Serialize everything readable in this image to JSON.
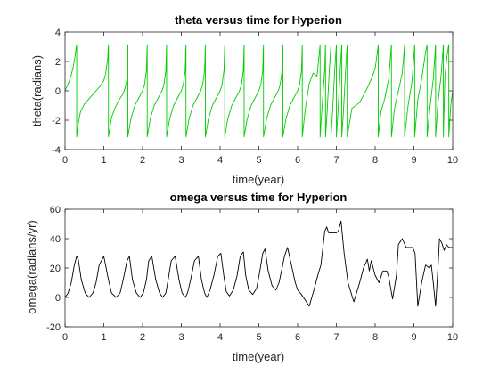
{
  "chart_data": [
    {
      "type": "line",
      "title": "theta versus time for Hyperion",
      "xlabel": "time(year)",
      "ylabel": "theta(radians)",
      "xlim": [
        0,
        10
      ],
      "ylim": [
        -4,
        4
      ],
      "xticks": [
        0,
        1,
        2,
        3,
        4,
        5,
        6,
        7,
        8,
        9,
        10
      ],
      "yticks": [
        -4,
        -2,
        0,
        2,
        4
      ],
      "grid": false,
      "series": [
        {
          "color": "#00cc00",
          "x": [
            0,
            0.05,
            0.1,
            0.15,
            0.2,
            0.25,
            0.28,
            0.3,
            0.3,
            0.33,
            0.4,
            0.5,
            0.6,
            0.7,
            0.8,
            0.9,
            1.0,
            1.05,
            1.1,
            1.12,
            1.12,
            1.2,
            1.3,
            1.4,
            1.5,
            1.55,
            1.6,
            1.62,
            1.62,
            1.7,
            1.8,
            1.9,
            2.0,
            2.05,
            2.1,
            2.12,
            2.12,
            2.2,
            2.3,
            2.4,
            2.5,
            2.55,
            2.6,
            2.62,
            2.62,
            2.7,
            2.8,
            2.9,
            3.0,
            3.05,
            3.1,
            3.12,
            3.12,
            3.2,
            3.3,
            3.4,
            3.5,
            3.55,
            3.6,
            3.62,
            3.62,
            3.7,
            3.8,
            3.9,
            4.0,
            4.05,
            4.1,
            4.12,
            4.12,
            4.2,
            4.3,
            4.4,
            4.5,
            4.55,
            4.6,
            4.62,
            4.62,
            4.7,
            4.8,
            4.9,
            5.0,
            5.05,
            5.1,
            5.12,
            5.12,
            5.2,
            5.3,
            5.4,
            5.5,
            5.55,
            5.6,
            5.62,
            5.62,
            5.7,
            5.8,
            5.9,
            6.0,
            6.05,
            6.1,
            6.12,
            6.12,
            6.2,
            6.3,
            6.4,
            6.5,
            6.58,
            6.58,
            6.62,
            6.7,
            6.72,
            6.72,
            6.76,
            6.82,
            6.86,
            6.86,
            6.9,
            6.96,
            7.0,
            7.0,
            7.04,
            7.1,
            7.14,
            7.14,
            7.18,
            7.24,
            7.28,
            7.28,
            7.4,
            7.6,
            7.8,
            7.9,
            8.0,
            8.05,
            8.08,
            8.08,
            8.15,
            8.25,
            8.35,
            8.42,
            8.42,
            8.5,
            8.6,
            8.7,
            8.76,
            8.76,
            8.85,
            8.95,
            9.02,
            9.02,
            9.1,
            9.2,
            9.3,
            9.34,
            9.34,
            9.42,
            9.5,
            9.56,
            9.56,
            9.62,
            9.7,
            9.76,
            9.76,
            9.8,
            9.86,
            9.9,
            9.9,
            9.95,
            10.0
          ],
          "y": [
            0,
            0.3,
            0.6,
            1.0,
            1.5,
            2.2,
            2.8,
            3.14,
            -3.14,
            -2.4,
            -1.4,
            -0.9,
            -0.6,
            -0.3,
            0,
            0.3,
            0.7,
            1.2,
            2.2,
            3.14,
            -3.14,
            -1.8,
            -1.1,
            -0.6,
            -0.2,
            0.2,
            0.8,
            3.14,
            -3.14,
            -1.9,
            -1.0,
            -0.5,
            0,
            0.4,
            1.4,
            3.14,
            -3.14,
            -1.9,
            -1.0,
            -0.5,
            0,
            0.4,
            1.4,
            3.14,
            -3.14,
            -1.9,
            -1.0,
            -0.5,
            0,
            0.4,
            1.4,
            3.14,
            -3.14,
            -1.9,
            -1.0,
            -0.5,
            0,
            0.4,
            1.4,
            3.14,
            -3.14,
            -1.9,
            -1.0,
            -0.5,
            0,
            0.4,
            1.4,
            3.14,
            -3.14,
            -1.9,
            -1.0,
            -0.5,
            0,
            0.4,
            1.4,
            3.14,
            -3.14,
            -1.9,
            -1.0,
            -0.5,
            0,
            0.4,
            1.4,
            3.14,
            -3.14,
            -1.9,
            -1.0,
            -0.5,
            0,
            0.4,
            1.4,
            3.14,
            -3.14,
            -1.9,
            -1.0,
            -0.5,
            0,
            0.4,
            1.4,
            3.14,
            -3.14,
            -1.2,
            0.5,
            1.2,
            1.0,
            3.14,
            -3.14,
            -1.5,
            1.5,
            3.14,
            -3.14,
            -1.5,
            1.5,
            3.14,
            -3.14,
            -1.5,
            1.5,
            3.14,
            -3.14,
            -1.5,
            1.5,
            3.14,
            -3.14,
            -1.5,
            1.5,
            3.14,
            -3.14,
            -1.2,
            -0.8,
            0.2,
            0.8,
            1.5,
            2.5,
            3.14,
            -3.14,
            -1.4,
            -0.5,
            0.8,
            3.14,
            -3.14,
            -1.2,
            0,
            1.2,
            3.14,
            -3.14,
            -1.0,
            0.6,
            3.14,
            -3.14,
            -0.6,
            0.8,
            2.6,
            3.14,
            -3.14,
            -1.0,
            0.8,
            3.14,
            -3.14,
            -0.8,
            1.0,
            3.14,
            -3.14,
            1.0,
            2.5,
            3.14,
            -3.14,
            -1.0,
            0
          ]
        }
      ]
    },
    {
      "type": "line",
      "title": "omega versus time for Hyperion",
      "xlabel": "time(year)",
      "ylabel": "omega(radians/yr)",
      "xlim": [
        0,
        10
      ],
      "ylim": [
        -20,
        60
      ],
      "xticks": [
        0,
        1,
        2,
        3,
        4,
        5,
        6,
        7,
        8,
        9,
        10
      ],
      "yticks": [
        -20,
        0,
        20,
        40,
        60
      ],
      "grid": false,
      "series": [
        {
          "color": "#000000",
          "x": [
            0,
            0.08,
            0.16,
            0.24,
            0.3,
            0.34,
            0.42,
            0.52,
            0.62,
            0.72,
            0.8,
            0.88,
            1.0,
            1.12,
            1.2,
            1.32,
            1.42,
            1.5,
            1.6,
            1.66,
            1.74,
            1.84,
            1.94,
            2.02,
            2.1,
            2.16,
            2.24,
            2.34,
            2.44,
            2.52,
            2.6,
            2.66,
            2.74,
            2.84,
            2.94,
            3.02,
            3.1,
            3.16,
            3.24,
            3.34,
            3.44,
            3.52,
            3.6,
            3.66,
            3.74,
            3.84,
            3.94,
            4.02,
            4.1,
            4.16,
            4.24,
            4.34,
            4.44,
            4.52,
            4.6,
            4.66,
            4.74,
            4.84,
            4.94,
            5.02,
            5.1,
            5.16,
            5.24,
            5.34,
            5.44,
            5.52,
            5.6,
            5.66,
            5.74,
            5.84,
            5.94,
            6.0,
            6.1,
            6.2,
            6.3,
            6.42,
            6.52,
            6.6,
            6.7,
            6.75,
            6.8,
            6.9,
            7.0,
            7.05,
            7.12,
            7.2,
            7.3,
            7.45,
            7.6,
            7.7,
            7.8,
            7.85,
            7.9,
            8.0,
            8.1,
            8.2,
            8.3,
            8.35,
            8.45,
            8.55,
            8.6,
            8.7,
            8.8,
            8.9,
            8.97,
            9.03,
            9.1,
            9.2,
            9.3,
            9.4,
            9.45,
            9.5,
            9.56,
            9.62,
            9.66,
            9.72,
            9.78,
            9.84,
            9.9,
            10.0
          ],
          "y": [
            0,
            3,
            10,
            22,
            28,
            26,
            12,
            3,
            0,
            3,
            10,
            22,
            28,
            12,
            3,
            0,
            3,
            12,
            25,
            28,
            12,
            3,
            0,
            3,
            12,
            25,
            28,
            12,
            3,
            0,
            3,
            12,
            25,
            28,
            12,
            3,
            0,
            3,
            12,
            25,
            28,
            12,
            3,
            0,
            5,
            15,
            28,
            30,
            14,
            4,
            1,
            5,
            15,
            28,
            31,
            15,
            5,
            2,
            6,
            17,
            30,
            33,
            18,
            8,
            5,
            10,
            20,
            28,
            34,
            22,
            10,
            5,
            2,
            -2,
            -6,
            5,
            15,
            22,
            45,
            48,
            44,
            44,
            44,
            45,
            52,
            30,
            10,
            -3,
            10,
            20,
            26,
            18,
            25,
            15,
            10,
            18,
            18,
            14,
            -1,
            15,
            36,
            40,
            34,
            34,
            34,
            30,
            -6,
            10,
            22,
            20,
            22,
            10,
            -6,
            20,
            40,
            37,
            32,
            36,
            34,
            34
          ]
        }
      ]
    }
  ]
}
